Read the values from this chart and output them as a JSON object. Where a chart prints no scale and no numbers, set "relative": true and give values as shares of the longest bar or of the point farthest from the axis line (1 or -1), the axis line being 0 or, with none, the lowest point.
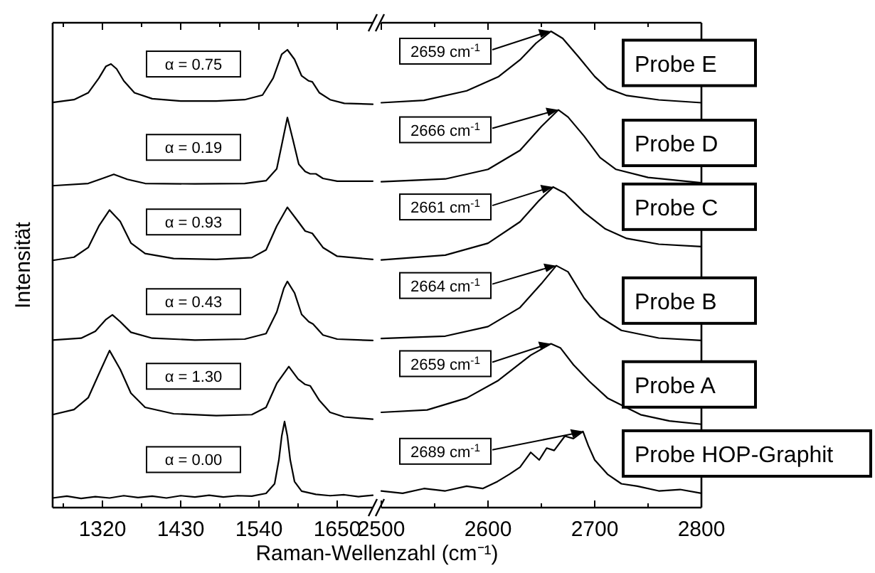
{
  "chart_data": [
    {
      "type": "line",
      "relative": true,
      "ylabel": "Intensität",
      "xlabel": "Raman-Wellenzahl (cm⁻¹)",
      "xlim": [
        1250,
        1700
      ],
      "xticks": [
        {
          "value": 1265,
          "label": null
        },
        1320,
        {
          "value": 1375,
          "label": null
        },
        1430,
        {
          "value": 1485,
          "label": null
        },
        1540,
        {
          "value": 1595,
          "label": null
        },
        1650
      ],
      "annotations": [
        "α = 0.75",
        "α = 0.19",
        "α = 0.93",
        "α = 0.43",
        "α = 1.30",
        "α = 0.00"
      ],
      "series": [
        {
          "color": "#000000",
          "x": [
            1250,
            1280,
            1300,
            1315,
            1325,
            1332,
            1340,
            1350,
            1365,
            1390,
            1430,
            1480,
            1520,
            1545,
            1560,
            1572,
            1580,
            1590,
            1600,
            1610,
            1615,
            1625,
            1640,
            1660,
            1700
          ],
          "values": [
            0.885,
            0.891,
            0.906,
            0.938,
            0.964,
            0.969,
            0.958,
            0.932,
            0.906,
            0.893,
            0.888,
            0.888,
            0.891,
            0.901,
            0.938,
            0.99,
            1.0,
            0.979,
            0.943,
            0.932,
            0.93,
            0.906,
            0.891,
            0.883,
            0.881
          ]
        },
        {
          "color": "#000000",
          "x": [
            1250,
            1300,
            1320,
            1336,
            1355,
            1380,
            1450,
            1520,
            1550,
            1565,
            1572,
            1580,
            1588,
            1596,
            1605,
            1612,
            1620,
            1630,
            1650,
            1700
          ],
          "values": [
            0.703,
            0.708,
            0.719,
            0.728,
            0.717,
            0.708,
            0.707,
            0.708,
            0.714,
            0.74,
            0.792,
            0.852,
            0.802,
            0.75,
            0.734,
            0.729,
            0.729,
            0.719,
            0.713,
            0.713
          ]
        },
        {
          "color": "#000000",
          "x": [
            1250,
            1280,
            1300,
            1315,
            1330,
            1345,
            1360,
            1380,
            1420,
            1480,
            1530,
            1550,
            1565,
            1580,
            1595,
            1605,
            1615,
            1630,
            1650,
            1700
          ],
          "values": [
            0.54,
            0.547,
            0.568,
            0.615,
            0.65,
            0.625,
            0.578,
            0.555,
            0.544,
            0.542,
            0.546,
            0.563,
            0.615,
            0.656,
            0.625,
            0.604,
            0.599,
            0.568,
            0.549,
            0.542
          ]
        },
        {
          "color": "#000000",
          "x": [
            1250,
            1290,
            1310,
            1325,
            1334,
            1345,
            1360,
            1390,
            1450,
            1520,
            1550,
            1565,
            1575,
            1580,
            1590,
            1600,
            1610,
            1616,
            1630,
            1650,
            1700
          ],
          "values": [
            0.366,
            0.37,
            0.385,
            0.411,
            0.421,
            0.406,
            0.383,
            0.37,
            0.366,
            0.368,
            0.38,
            0.427,
            0.479,
            0.494,
            0.469,
            0.422,
            0.406,
            0.401,
            0.377,
            0.368,
            0.365
          ]
        },
        {
          "color": "#000000",
          "x": [
            1250,
            1280,
            1300,
            1315,
            1330,
            1345,
            1360,
            1380,
            1420,
            1480,
            1530,
            1550,
            1565,
            1582,
            1595,
            1605,
            1612,
            1625,
            1640,
            1660,
            1700
          ],
          "values": [
            0.203,
            0.214,
            0.24,
            0.292,
            0.343,
            0.302,
            0.25,
            0.219,
            0.205,
            0.201,
            0.203,
            0.219,
            0.271,
            0.308,
            0.281,
            0.269,
            0.266,
            0.234,
            0.208,
            0.198,
            0.193
          ]
        },
        {
          "color": "#000000",
          "x": [
            1250,
            1270,
            1290,
            1310,
            1330,
            1350,
            1370,
            1390,
            1410,
            1430,
            1450,
            1470,
            1490,
            1510,
            1530,
            1550,
            1562,
            1568,
            1572,
            1576,
            1580,
            1584,
            1590,
            1600,
            1620,
            1640,
            1660,
            1680,
            1700
          ],
          "values": [
            0.021,
            0.025,
            0.02,
            0.024,
            0.021,
            0.026,
            0.022,
            0.025,
            0.021,
            0.026,
            0.023,
            0.027,
            0.023,
            0.026,
            0.025,
            0.031,
            0.052,
            0.104,
            0.156,
            0.188,
            0.156,
            0.104,
            0.057,
            0.036,
            0.029,
            0.026,
            0.028,
            0.024,
            0.027
          ]
        }
      ]
    },
    {
      "type": "line",
      "relative": true,
      "xlim": [
        2500,
        2800
      ],
      "xticks": [
        2500,
        {
          "value": 2550,
          "label": null
        },
        2600,
        {
          "value": 2650,
          "label": null
        },
        2700,
        {
          "value": 2750,
          "label": null
        },
        2800
      ],
      "annotations": [
        {
          "text": "2659 cm$^{-1}$",
          "x": 2659,
          "y": 1.0
        },
        {
          "text": "2666 cm$^{-1}$",
          "x": 2666,
          "y": 0.835
        },
        {
          "text": "2661 cm$^{-1}$",
          "x": 2661,
          "y": 0.673
        },
        {
          "text": "2664 cm$^{-1}$",
          "x": 2664,
          "y": 0.508
        },
        {
          "text": "2659 cm$^{-1}$",
          "x": 2659,
          "y": 0.344
        },
        {
          "text": "2689 cm$^{-1}$",
          "x": 2689,
          "y": 0.16
        }
      ],
      "series": [
        {
          "name": "Probe E",
          "color": "#000000",
          "x": [
            2500,
            2540,
            2580,
            2610,
            2630,
            2645,
            2659,
            2670,
            2685,
            2700,
            2712,
            2730,
            2760,
            2800
          ],
          "values": [
            0.85,
            0.855,
            0.875,
            0.905,
            0.94,
            0.975,
            1.0,
            0.985,
            0.946,
            0.905,
            0.88,
            0.865,
            0.856,
            0.85
          ]
        },
        {
          "name": "Probe D",
          "color": "#000000",
          "x": [
            2500,
            2560,
            2600,
            2630,
            2650,
            2666,
            2675,
            2690,
            2705,
            2720,
            2750,
            2800
          ],
          "values": [
            0.684,
            0.69,
            0.71,
            0.75,
            0.8,
            0.835,
            0.82,
            0.78,
            0.735,
            0.71,
            0.693,
            0.682
          ]
        },
        {
          "name": "Probe C",
          "color": "#000000",
          "x": [
            2500,
            2560,
            2600,
            2630,
            2648,
            2661,
            2672,
            2690,
            2710,
            2730,
            2760,
            2800
          ],
          "values": [
            0.52,
            0.53,
            0.555,
            0.6,
            0.645,
            0.673,
            0.66,
            0.62,
            0.585,
            0.565,
            0.553,
            0.548
          ]
        },
        {
          "name": "Probe B",
          "color": "#000000",
          "x": [
            2500,
            2560,
            2600,
            2630,
            2650,
            2664,
            2675,
            2690,
            2705,
            2725,
            2760,
            2800
          ],
          "values": [
            0.355,
            0.36,
            0.38,
            0.42,
            0.47,
            0.508,
            0.495,
            0.44,
            0.4,
            0.372,
            0.356,
            0.351
          ]
        },
        {
          "name": "Probe A",
          "color": "#000000",
          "x": [
            2500,
            2543,
            2580,
            2609,
            2640,
            2659,
            2668,
            2680,
            2695,
            2712,
            2743,
            2770,
            2800
          ],
          "values": [
            0.2,
            0.205,
            0.23,
            0.266,
            0.32,
            0.344,
            0.335,
            0.3,
            0.265,
            0.23,
            0.195,
            0.182,
            0.175
          ]
        },
        {
          "name": "Probe HOP-Graphit",
          "color": "#000000",
          "x": [
            2500,
            2520,
            2540,
            2560,
            2580,
            2595,
            2609,
            2620,
            2630,
            2640,
            2648,
            2655,
            2662,
            2672,
            2680,
            2689,
            2694,
            2700,
            2712,
            2725,
            2740,
            2760,
            2780,
            2800
          ],
          "values": [
            0.035,
            0.03,
            0.04,
            0.035,
            0.045,
            0.04,
            0.055,
            0.07,
            0.085,
            0.116,
            0.1,
            0.125,
            0.12,
            0.15,
            0.145,
            0.16,
            0.13,
            0.1,
            0.07,
            0.05,
            0.045,
            0.035,
            0.038,
            0.03
          ]
        }
      ]
    }
  ]
}
